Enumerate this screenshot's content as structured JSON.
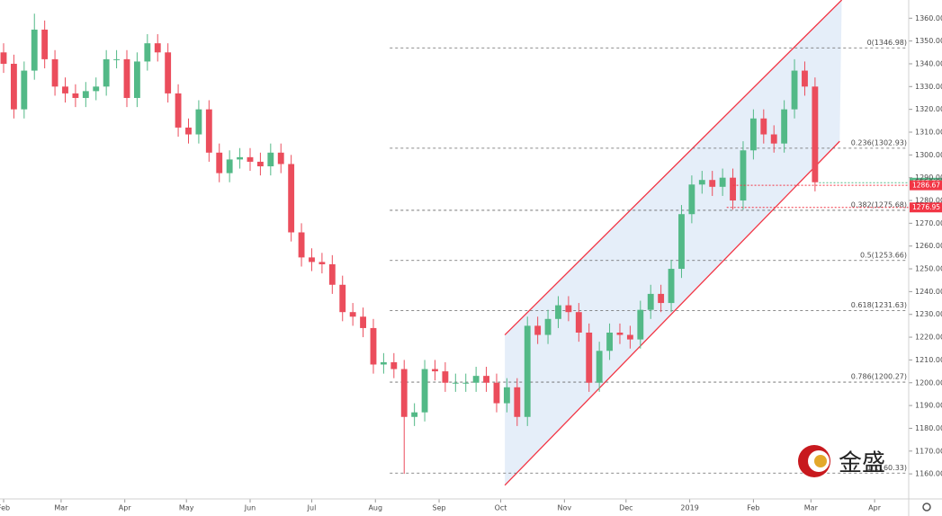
{
  "chart_data": {
    "type": "candlestick",
    "x": [
      0,
      5,
      10,
      15,
      20,
      25,
      30,
      35,
      40,
      45,
      50,
      55,
      60,
      65,
      70,
      75,
      80,
      85,
      90,
      95,
      100,
      105,
      110,
      115,
      120,
      125,
      130,
      135,
      140,
      145,
      150,
      155,
      160,
      165,
      170,
      175,
      180,
      185,
      190,
      195,
      200,
      205,
      210,
      215,
      220,
      225,
      230,
      235,
      240,
      245,
      250,
      255,
      260,
      265,
      270,
      275,
      280,
      285,
      290,
      295,
      300,
      305,
      310,
      315,
      320,
      325,
      330,
      335,
      340,
      345,
      350,
      355,
      360,
      365,
      370,
      375,
      380,
      385,
      390,
      395
    ],
    "open": [
      1345,
      1340,
      1320,
      1337,
      1355,
      1342,
      1330,
      1327,
      1325,
      1328,
      1330,
      1342,
      1342,
      1325,
      1341,
      1349,
      1345,
      1327,
      1312,
      1309,
      1320,
      1301,
      1292,
      1298,
      1299,
      1297,
      1295,
      1301,
      1296,
      1266,
      1255,
      1253,
      1252,
      1243,
      1231,
      1229,
      1224,
      1208,
      1209,
      1206,
      1185,
      1187,
      1206,
      1205,
      1200,
      1200,
      1200,
      1203,
      1200,
      1191,
      1198,
      1185,
      1225,
      1221,
      1228,
      1234,
      1231,
      1222,
      1200,
      1214,
      1222,
      1221,
      1219,
      1232,
      1239,
      1235,
      1250,
      1274,
      1287,
      1289,
      1286,
      1290,
      1280,
      1302,
      1316,
      1309,
      1305,
      1320,
      1337,
      1330
    ],
    "high": [
      1349,
      1344,
      1341,
      1362,
      1359,
      1346,
      1334,
      1331,
      1332,
      1334,
      1346,
      1346,
      1346,
      1345,
      1353,
      1353,
      1349,
      1331,
      1316,
      1324,
      1324,
      1305,
      1302,
      1303,
      1303,
      1301,
      1305,
      1305,
      1300,
      1270,
      1259,
      1257,
      1256,
      1247,
      1235,
      1233,
      1228,
      1213,
      1213,
      1210,
      1191,
      1210,
      1210,
      1209,
      1204,
      1204,
      1207,
      1207,
      1204,
      1202,
      1202,
      1229,
      1229,
      1232,
      1238,
      1238,
      1235,
      1226,
      1218,
      1226,
      1226,
      1225,
      1236,
      1243,
      1243,
      1254,
      1278,
      1291,
      1293,
      1293,
      1294,
      1294,
      1306,
      1320,
      1320,
      1313,
      1324,
      1342,
      1341,
      1334
    ],
    "low": [
      1336,
      1316,
      1316,
      1333,
      1338,
      1326,
      1323,
      1321,
      1321,
      1324,
      1326,
      1338,
      1321,
      1321,
      1337,
      1341,
      1323,
      1308,
      1305,
      1305,
      1297,
      1288,
      1288,
      1294,
      1293,
      1291,
      1291,
      1292,
      1262,
      1251,
      1249,
      1248,
      1239,
      1227,
      1225,
      1220,
      1204,
      1204,
      1202,
      1160,
      1181,
      1183,
      1201,
      1196,
      1196,
      1196,
      1196,
      1196,
      1187,
      1187,
      1181,
      1181,
      1217,
      1217,
      1224,
      1227,
      1218,
      1196,
      1196,
      1210,
      1217,
      1215,
      1215,
      1228,
      1231,
      1231,
      1246,
      1270,
      1283,
      1282,
      1282,
      1276,
      1276,
      1298,
      1305,
      1301,
      1301,
      1316,
      1326,
      1284
    ],
    "close": [
      1340,
      1320,
      1337,
      1355,
      1342,
      1330,
      1327,
      1325,
      1328,
      1330,
      1342,
      1342,
      1325,
      1341,
      1349,
      1345,
      1327,
      1312,
      1309,
      1320,
      1301,
      1292,
      1298,
      1299,
      1297,
      1295,
      1301,
      1296,
      1266,
      1255,
      1253,
      1252,
      1243,
      1231,
      1229,
      1224,
      1208,
      1209,
      1206,
      1185,
      1187,
      1206,
      1205,
      1200,
      1200,
      1200,
      1203,
      1200,
      1191,
      1198,
      1185,
      1225,
      1221,
      1228,
      1234,
      1231,
      1222,
      1200,
      1214,
      1222,
      1221,
      1219,
      1232,
      1239,
      1235,
      1250,
      1274,
      1287,
      1289,
      1286,
      1290,
      1280,
      1302,
      1316,
      1309,
      1305,
      1320,
      1337,
      1330,
      1288
    ],
    "up_color": "#53b987",
    "down_color": "#eb4d5c",
    "xlim": [
      -1.75,
      440.6
    ],
    "ylim": [
      1149,
      1368
    ],
    "xticks": [
      {
        "value": 0,
        "label": "Feb"
      },
      {
        "value": 28,
        "label": "Mar"
      },
      {
        "value": 59,
        "label": "Apr"
      },
      {
        "value": 89,
        "label": "May"
      },
      {
        "value": 120,
        "label": "Jun"
      },
      {
        "value": 150,
        "label": "Jul"
      },
      {
        "value": 181,
        "label": "Aug"
      },
      {
        "value": 212,
        "label": "Sep"
      },
      {
        "value": 242,
        "label": "Oct"
      },
      {
        "value": 273,
        "label": "Nov"
      },
      {
        "value": 303,
        "label": "Dec"
      },
      {
        "value": 334,
        "label": "2019"
      },
      {
        "value": 365,
        "label": "Feb"
      },
      {
        "value": 393,
        "label": "Mar"
      },
      {
        "value": 424,
        "label": "Apr"
      }
    ],
    "yticks": [
      {
        "value": 1160,
        "label": "1160.00"
      },
      {
        "value": 1170,
        "label": "1170.00"
      },
      {
        "value": 1180,
        "label": "1180.00"
      },
      {
        "value": 1190,
        "label": "1190.00"
      },
      {
        "value": 1200,
        "label": "1200.00"
      },
      {
        "value": 1210,
        "label": "1210.00"
      },
      {
        "value": 1220,
        "label": "1220.00"
      },
      {
        "value": 1230,
        "label": "1230.00"
      },
      {
        "value": 1240,
        "label": "1240.00"
      },
      {
        "value": 1250,
        "label": "1250.00"
      },
      {
        "value": 1260,
        "label": "1260.00"
      },
      {
        "value": 1270,
        "label": "1270.00"
      },
      {
        "value": 1280,
        "label": "1280.00"
      },
      {
        "value": 1290,
        "label": "1290.00"
      },
      {
        "value": 1300,
        "label": "1300.00"
      },
      {
        "value": 1310,
        "label": "1310.00"
      },
      {
        "value": 1320,
        "label": "1320.00"
      },
      {
        "value": 1330,
        "label": "1330.00"
      },
      {
        "value": 1340,
        "label": "1340.00"
      },
      {
        "value": 1350,
        "label": "1350.00"
      },
      {
        "value": 1360,
        "label": "1360.00"
      }
    ],
    "fib_start": 188,
    "fib_levels": [
      {
        "value": 1346.98,
        "label": "0(1346.98)"
      },
      {
        "value": 1302.93,
        "label": "0.236(1302.93)"
      },
      {
        "value": 1275.68,
        "label": "0.382(1275.68)"
      },
      {
        "value": 1253.66,
        "label": "0.5(1253.66)"
      },
      {
        "value": 1231.63,
        "label": "0.618(1231.63)"
      },
      {
        "value": 1200.27,
        "label": "0.786(1200.27)"
      },
      {
        "value": 1160.33,
        "label": "1(1160.33)"
      }
    ],
    "channel": {
      "upper": [
        [
          244,
          1221
        ],
        [
          408,
          1368
        ]
      ],
      "lower": [
        [
          244,
          1155
        ],
        [
          407,
          1306
        ]
      ],
      "color": "#f23645",
      "fill": "#dce8f7"
    },
    "price_lines": [
      {
        "value": 1287.78,
        "start": 397,
        "color": "#53b987"
      },
      {
        "value": 1286.67,
        "start": 355,
        "color": "#f23645"
      },
      {
        "value": 1276.95,
        "start": 352,
        "color": "#f23645"
      }
    ],
    "logo_text": "金盛"
  }
}
